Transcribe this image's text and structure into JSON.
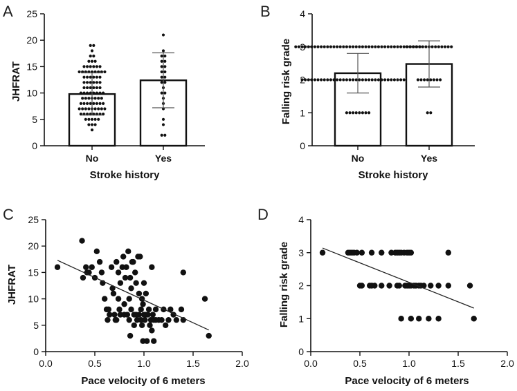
{
  "chart_data": [
    {
      "panel": "A",
      "type": "bar",
      "title": "",
      "xlabel": "Stroke history",
      "ylabel": "JHFRAT",
      "categories": [
        "No",
        "Yes"
      ],
      "values": [
        9.8,
        12.4
      ],
      "error_sd": [
        4.0,
        5.2
      ],
      "ylim": [
        0,
        25
      ],
      "yticks": [
        0,
        5,
        10,
        15,
        20,
        25
      ],
      "points": [
        [
          19,
          19,
          18,
          17,
          17,
          16,
          16,
          16,
          15,
          15,
          15,
          15,
          15,
          15,
          14,
          14,
          14,
          14,
          14,
          14,
          14,
          14,
          14,
          13,
          13,
          13,
          13,
          13,
          13,
          12,
          12,
          12,
          12,
          12,
          12,
          11,
          11,
          11,
          11,
          11,
          11,
          10,
          10,
          10,
          10,
          10,
          10,
          10,
          10,
          9,
          9,
          9,
          9,
          9,
          9,
          9,
          8,
          8,
          8,
          8,
          8,
          8,
          8,
          8,
          7,
          7,
          7,
          7,
          7,
          7,
          7,
          7,
          7,
          6,
          6,
          6,
          6,
          6,
          6,
          6,
          6,
          5,
          5,
          5,
          5,
          5,
          4,
          4,
          4,
          3
        ],
        [
          21,
          18,
          17,
          17,
          16,
          16,
          15,
          15,
          14,
          14,
          13,
          13,
          12,
          12,
          11,
          10,
          10,
          9,
          8,
          7,
          5,
          4,
          2,
          2
        ]
      ]
    },
    {
      "panel": "B",
      "type": "bar",
      "title": "",
      "xlabel": "Stroke history",
      "ylabel": "Falling risk grade",
      "categories": [
        "No",
        "Yes"
      ],
      "values": [
        2.2,
        2.48
      ],
      "error_sd": [
        0.6,
        0.7
      ],
      "ylim": [
        0,
        4
      ],
      "yticks": [
        0,
        1,
        2,
        3,
        4
      ],
      "points": [
        [
          3,
          3,
          3,
          3,
          3,
          3,
          3,
          3,
          3,
          3,
          3,
          3,
          3,
          3,
          3,
          3,
          3,
          3,
          3,
          3,
          3,
          3,
          3,
          3,
          3,
          3,
          3,
          3,
          3,
          3,
          3,
          3,
          3,
          3,
          3,
          3,
          3,
          3,
          3,
          3,
          2,
          2,
          2,
          2,
          2,
          2,
          2,
          2,
          2,
          2,
          2,
          2,
          2,
          2,
          2,
          2,
          2,
          2,
          2,
          2,
          2,
          2,
          2,
          2,
          2,
          2,
          2,
          2,
          2,
          2,
          2,
          2,
          2,
          2,
          2,
          2,
          1,
          1,
          1,
          1,
          1,
          1,
          1,
          1
        ],
        [
          3,
          3,
          3,
          3,
          3,
          3,
          3,
          3,
          3,
          3,
          3,
          3,
          3,
          3,
          3,
          2,
          2,
          2,
          2,
          2,
          2,
          2,
          2,
          1,
          1
        ]
      ]
    },
    {
      "panel": "C",
      "type": "scatter",
      "title": "",
      "xlabel": "Pace velocity of 6 meters",
      "ylabel": "JHFRAT",
      "xlim": [
        0,
        2.0
      ],
      "ylim": [
        0,
        25
      ],
      "xticks": [
        "0.0",
        "0.5",
        "1.0",
        "1.5",
        "2.0"
      ],
      "yticks": [
        0,
        5,
        10,
        15,
        20,
        25
      ],
      "points": [
        [
          0.12,
          16
        ],
        [
          0.37,
          21
        ],
        [
          0.38,
          14
        ],
        [
          0.41,
          16
        ],
        [
          0.42,
          15
        ],
        [
          0.44,
          15
        ],
        [
          0.47,
          16
        ],
        [
          0.5,
          14
        ],
        [
          0.52,
          19
        ],
        [
          0.55,
          17
        ],
        [
          0.57,
          15
        ],
        [
          0.58,
          13
        ],
        [
          0.6,
          10
        ],
        [
          0.62,
          8
        ],
        [
          0.63,
          6
        ],
        [
          0.64,
          8
        ],
        [
          0.65,
          7
        ],
        [
          0.67,
          16
        ],
        [
          0.68,
          12
        ],
        [
          0.69,
          11
        ],
        [
          0.7,
          7
        ],
        [
          0.71,
          6
        ],
        [
          0.72,
          17
        ],
        [
          0.72,
          6
        ],
        [
          0.74,
          15
        ],
        [
          0.74,
          10
        ],
        [
          0.75,
          8
        ],
        [
          0.76,
          7
        ],
        [
          0.76,
          13
        ],
        [
          0.78,
          16
        ],
        [
          0.79,
          18
        ],
        [
          0.8,
          9
        ],
        [
          0.8,
          7
        ],
        [
          0.81,
          14
        ],
        [
          0.82,
          16
        ],
        [
          0.83,
          7
        ],
        [
          0.84,
          19
        ],
        [
          0.85,
          6
        ],
        [
          0.85,
          10
        ],
        [
          0.86,
          14
        ],
        [
          0.86,
          3
        ],
        [
          0.87,
          12
        ],
        [
          0.87,
          8
        ],
        [
          0.88,
          17
        ],
        [
          0.89,
          17
        ],
        [
          0.9,
          7
        ],
        [
          0.9,
          5
        ],
        [
          0.91,
          15
        ],
        [
          0.92,
          13
        ],
        [
          0.92,
          7
        ],
        [
          0.93,
          6
        ],
        [
          0.94,
          18
        ],
        [
          0.95,
          11
        ],
        [
          0.95,
          7
        ],
        [
          0.96,
          18
        ],
        [
          0.97,
          6
        ],
        [
          0.97,
          8
        ],
        [
          0.98,
          5
        ],
        [
          0.98,
          10
        ],
        [
          0.99,
          9
        ],
        [
          0.99,
          2
        ],
        [
          1.0,
          7
        ],
        [
          1.0,
          13
        ],
        [
          1.01,
          6
        ],
        [
          1.02,
          7
        ],
        [
          1.02,
          11
        ],
        [
          1.03,
          2
        ],
        [
          1.04,
          7
        ],
        [
          1.05,
          8
        ],
        [
          1.06,
          5
        ],
        [
          1.07,
          6
        ],
        [
          1.08,
          16
        ],
        [
          1.08,
          4
        ],
        [
          1.09,
          7
        ],
        [
          1.1,
          2
        ],
        [
          1.1,
          6
        ],
        [
          1.12,
          8
        ],
        [
          1.12,
          6
        ],
        [
          1.15,
          6
        ],
        [
          1.18,
          6
        ],
        [
          1.2,
          8
        ],
        [
          1.22,
          5
        ],
        [
          1.25,
          6
        ],
        [
          1.27,
          8
        ],
        [
          1.3,
          7
        ],
        [
          1.33,
          6
        ],
        [
          1.38,
          8
        ],
        [
          1.4,
          15
        ],
        [
          1.4,
          6
        ],
        [
          1.62,
          10
        ],
        [
          1.66,
          3
        ]
      ],
      "trendline": [
        [
          0.12,
          17.3
        ],
        [
          1.66,
          4.1
        ]
      ]
    },
    {
      "panel": "D",
      "type": "scatter",
      "title": "",
      "xlabel": "Pace velocity of 6 meters",
      "ylabel": "Falling risk grade",
      "xlim": [
        0,
        2.0
      ],
      "ylim": [
        0,
        4
      ],
      "xticks": [
        "0.0",
        "0.5",
        "1.0",
        "1.5",
        "2.0"
      ],
      "yticks": [
        0,
        1,
        2,
        3,
        4
      ],
      "points": [
        [
          0.12,
          3
        ],
        [
          0.38,
          3
        ],
        [
          0.4,
          3
        ],
        [
          0.42,
          3
        ],
        [
          0.44,
          3
        ],
        [
          0.47,
          3
        ],
        [
          0.52,
          3
        ],
        [
          0.62,
          3
        ],
        [
          0.72,
          3
        ],
        [
          0.82,
          3
        ],
        [
          0.86,
          3
        ],
        [
          0.88,
          3
        ],
        [
          0.9,
          3
        ],
        [
          0.92,
          3
        ],
        [
          0.95,
          3
        ],
        [
          0.98,
          3
        ],
        [
          1.0,
          3
        ],
        [
          1.02,
          3
        ],
        [
          1.4,
          3
        ],
        [
          0.5,
          2
        ],
        [
          0.52,
          2
        ],
        [
          0.6,
          2
        ],
        [
          0.62,
          2
        ],
        [
          0.65,
          2
        ],
        [
          0.72,
          2
        ],
        [
          0.8,
          2
        ],
        [
          0.88,
          2
        ],
        [
          0.9,
          2
        ],
        [
          0.96,
          2
        ],
        [
          0.98,
          2
        ],
        [
          1.0,
          2
        ],
        [
          1.02,
          2
        ],
        [
          1.05,
          2
        ],
        [
          1.07,
          2
        ],
        [
          1.1,
          2
        ],
        [
          1.12,
          2
        ],
        [
          1.15,
          2
        ],
        [
          1.22,
          2
        ],
        [
          1.3,
          2
        ],
        [
          1.4,
          2
        ],
        [
          1.62,
          2
        ],
        [
          0.92,
          1
        ],
        [
          1.02,
          1
        ],
        [
          1.1,
          1
        ],
        [
          1.2,
          1
        ],
        [
          1.3,
          1
        ],
        [
          1.66,
          1
        ]
      ],
      "trendline": [
        [
          0.12,
          3.14
        ],
        [
          1.66,
          1.32
        ]
      ]
    }
  ]
}
